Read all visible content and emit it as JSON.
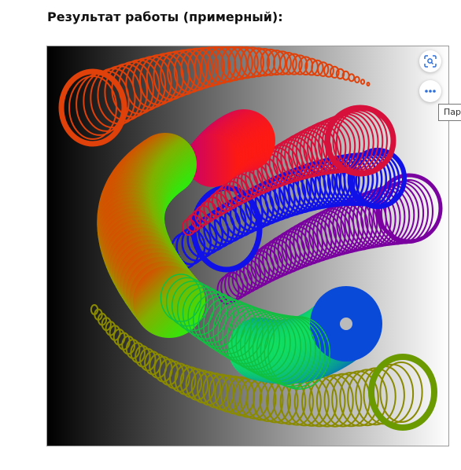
{
  "heading": "Результат работы (примерный):",
  "tooltip": "Пар",
  "toolbar": {
    "lens_icon": "visual-search-icon",
    "more_icon": "more-dots-icon",
    "accent": "#2e6fd9"
  },
  "artwork": {
    "background": "gradient black to white",
    "colors": {
      "red_orange": "#e0400a",
      "crimson": "#d6103a",
      "red": "#ff1a00",
      "blue": "#1010e8",
      "purple": "#7a00a0",
      "green": "#22ff10",
      "olive": "#8a8a00",
      "lime_olive": "#6a9a00",
      "teal": "#008a70",
      "deep_blue": "#0a4ad8"
    }
  }
}
